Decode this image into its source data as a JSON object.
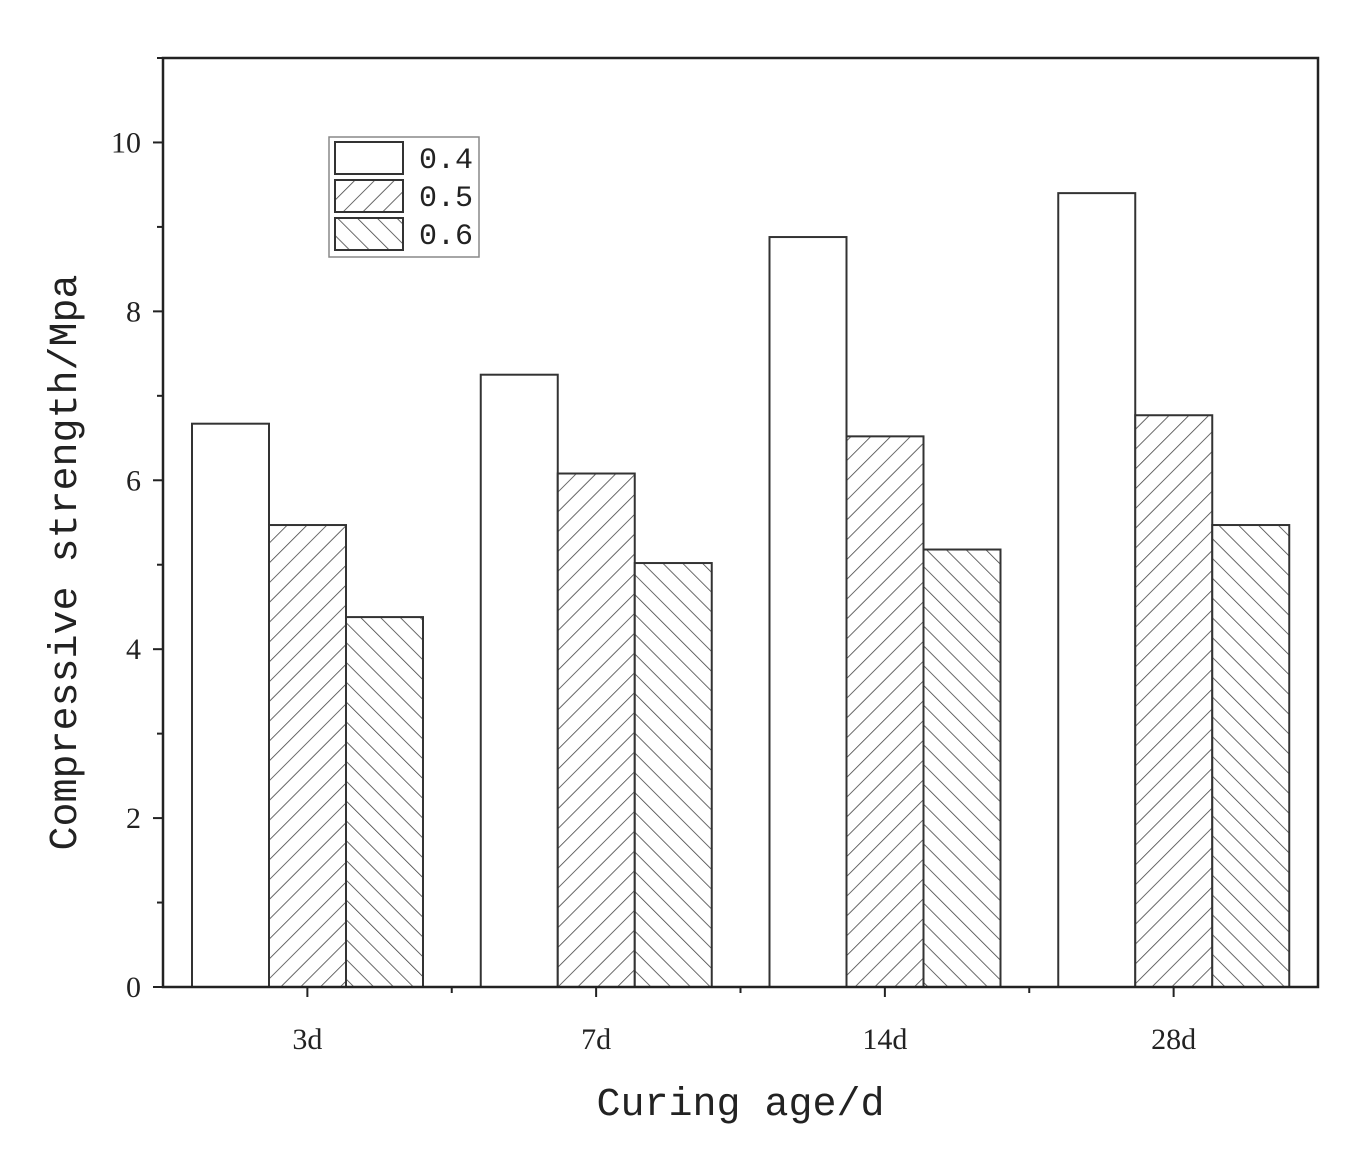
{
  "chart_data": {
    "type": "bar",
    "categories": [
      "3d",
      "7d",
      "14d",
      "28d"
    ],
    "series": [
      {
        "name": "0.4",
        "values": [
          6.67,
          7.25,
          8.88,
          9.4
        ],
        "pattern": "none"
      },
      {
        "name": "0.5",
        "values": [
          5.47,
          6.08,
          6.52,
          6.77
        ],
        "pattern": "forward-hatch"
      },
      {
        "name": "0.6",
        "values": [
          4.38,
          5.02,
          5.18,
          5.47
        ],
        "pattern": "back-hatch"
      }
    ],
    "title": "",
    "xlabel": "Curing age/d",
    "ylabel": "Compressive strength/Mpa",
    "ylim": [
      0,
      11
    ],
    "yticks": [
      "0",
      "2",
      "4",
      "6",
      "8",
      "10"
    ],
    "grid": false,
    "legend_position": "top-left"
  }
}
